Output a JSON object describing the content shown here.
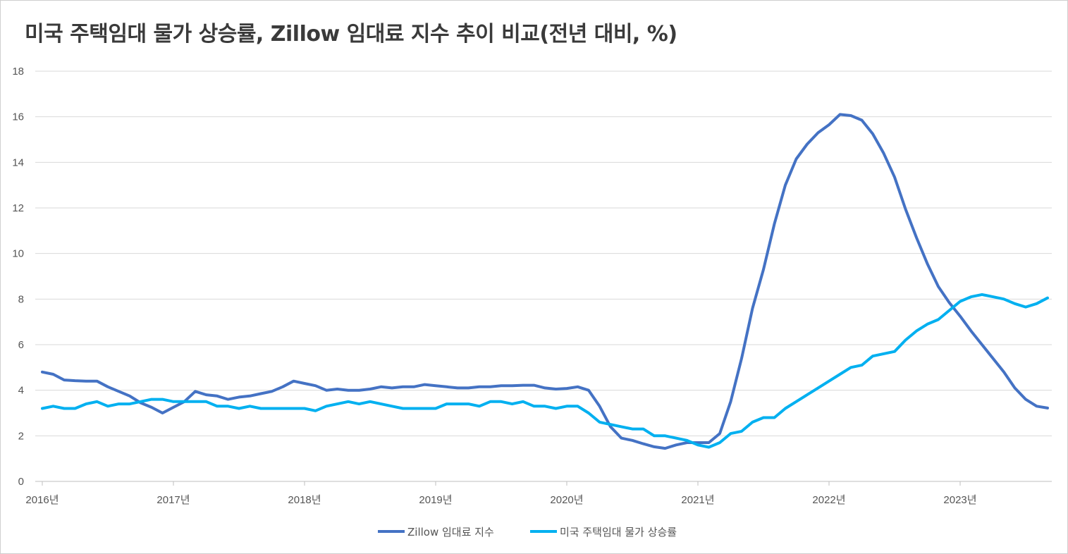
{
  "chart_data": {
    "type": "line",
    "title": "미국 주택임대 물가 상승률, Zillow 임대료 지수 추이 비교(전년 대비, %)",
    "xlabel": "",
    "ylabel": "",
    "ylim": [
      0,
      18
    ],
    "y_ticks": [
      "0",
      "2",
      "4",
      "6",
      "8",
      "10",
      "12",
      "14",
      "16",
      "18"
    ],
    "x_tick_labels": [
      "2016년",
      "2017년",
      "2018년",
      "2019년",
      "2020년",
      "2021년",
      "2022년",
      "2023년"
    ],
    "x_start": "2016-01",
    "x_frequency": "monthly",
    "grid": true,
    "legend_position": "bottom",
    "colors": {
      "zillow": "#4472C4",
      "cpi": "#00B0F0",
      "grid": "#d9d9d9",
      "axis": "#bfbfbf"
    },
    "series": [
      {
        "name": "Zillow 임대료 지수",
        "color": "#4472C4",
        "values": [
          4.8,
          4.7,
          4.45,
          4.42,
          4.4,
          4.4,
          4.15,
          3.95,
          3.75,
          3.45,
          3.25,
          3.0,
          3.25,
          3.5,
          3.95,
          3.8,
          3.75,
          3.6,
          3.7,
          3.75,
          3.85,
          3.95,
          4.15,
          4.4,
          4.3,
          4.2,
          4.0,
          4.05,
          4.0,
          4.0,
          4.05,
          4.15,
          4.1,
          4.15,
          4.15,
          4.25,
          4.2,
          4.15,
          4.1,
          4.1,
          4.15,
          4.15,
          4.2,
          4.2,
          4.22,
          4.22,
          4.1,
          4.05,
          4.08,
          4.15,
          4.0,
          3.3,
          2.4,
          1.9,
          1.8,
          1.65,
          1.52,
          1.45,
          1.6,
          1.7,
          1.7,
          1.7,
          2.1,
          3.5,
          5.4,
          7.6,
          9.3,
          11.3,
          13.0,
          14.15,
          14.8,
          15.3,
          15.65,
          16.1,
          16.05,
          15.85,
          15.25,
          14.4,
          13.35,
          11.95,
          10.7,
          9.55,
          8.55,
          7.85,
          7.25,
          6.6,
          6.0,
          5.4,
          4.8,
          4.1,
          3.6,
          3.3,
          3.22
        ]
      },
      {
        "name": "미국 주택임대 물가 상승률",
        "color": "#00B0F0",
        "values": [
          3.2,
          3.3,
          3.2,
          3.2,
          3.4,
          3.5,
          3.3,
          3.4,
          3.4,
          3.5,
          3.6,
          3.6,
          3.5,
          3.5,
          3.5,
          3.5,
          3.3,
          3.3,
          3.2,
          3.3,
          3.2,
          3.2,
          3.2,
          3.2,
          3.2,
          3.1,
          3.3,
          3.4,
          3.5,
          3.4,
          3.5,
          3.4,
          3.3,
          3.2,
          3.2,
          3.2,
          3.2,
          3.4,
          3.4,
          3.4,
          3.3,
          3.5,
          3.5,
          3.4,
          3.5,
          3.3,
          3.3,
          3.2,
          3.3,
          3.3,
          3.0,
          2.6,
          2.5,
          2.4,
          2.3,
          2.3,
          2.0,
          2.0,
          1.9,
          1.8,
          1.6,
          1.5,
          1.7,
          2.1,
          2.2,
          2.6,
          2.8,
          2.8,
          3.2,
          3.5,
          3.8,
          4.1,
          4.4,
          4.7,
          5.0,
          5.1,
          5.5,
          5.6,
          5.7,
          6.2,
          6.6,
          6.9,
          7.1,
          7.5,
          7.9,
          8.1,
          8.2,
          8.1,
          8.0,
          7.8,
          7.65,
          7.8,
          8.05
        ]
      }
    ]
  }
}
